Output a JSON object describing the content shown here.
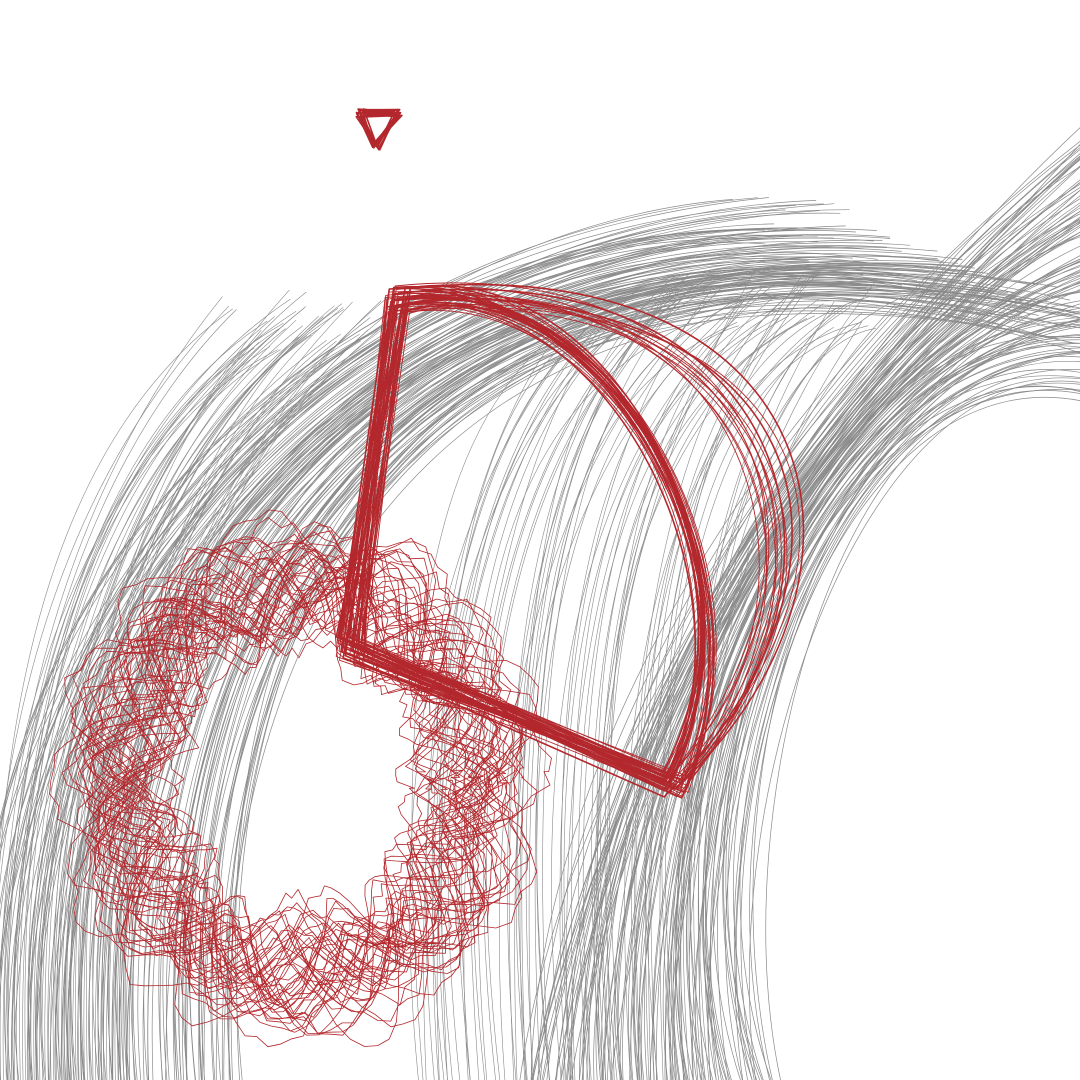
{
  "artwork": {
    "background": "#ffffff",
    "palette": {
      "flow_lines": "#8a8a8a",
      "loops": "#b3282d"
    },
    "motifs": [
      "flow-field-lines",
      "small-triangle-loop",
      "leaf-loop",
      "ring-loop"
    ]
  }
}
